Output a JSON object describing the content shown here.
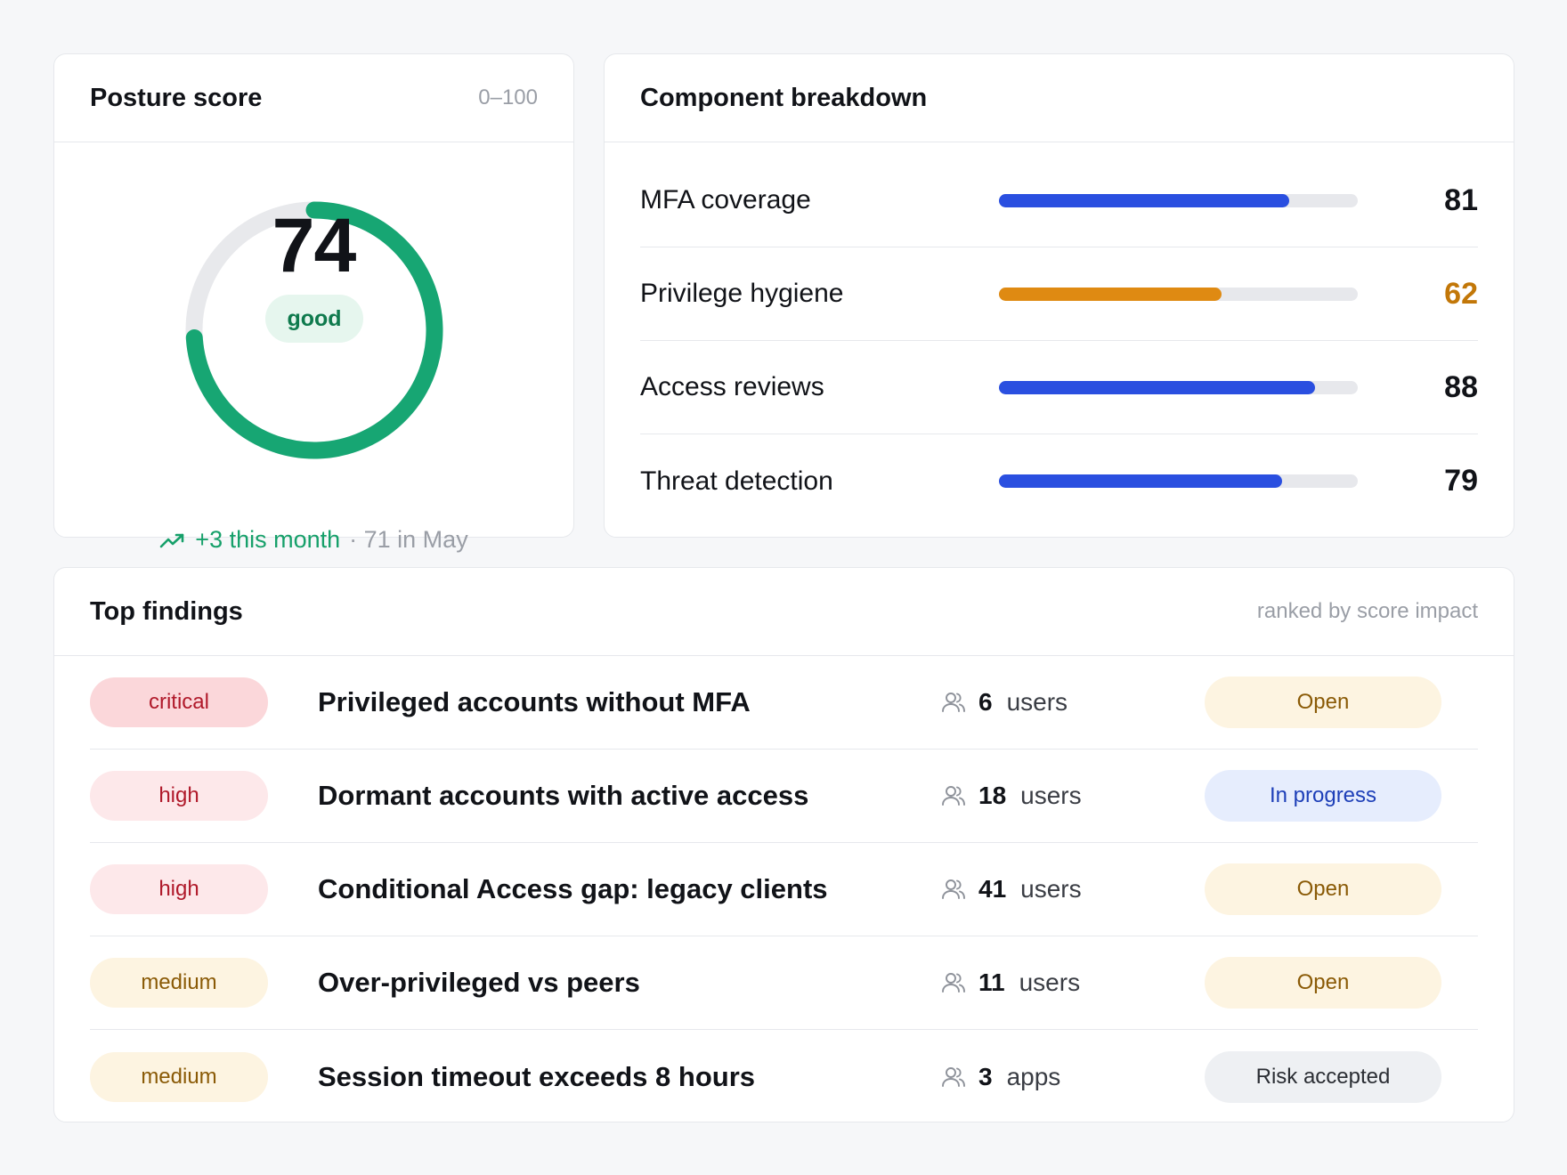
{
  "posture": {
    "title": "Posture score",
    "range_label": "0–100",
    "score": "74",
    "score_fraction": 0.74,
    "rating": "good",
    "trend_delta": "+3 this month",
    "trend_previous": "· 71 in May",
    "colors": {
      "arc": "#17a673",
      "track": "#e8e9ec"
    }
  },
  "components": {
    "title": "Component breakdown",
    "items": [
      {
        "label": "MFA coverage",
        "value": "81",
        "fraction": 0.81,
        "bar_color": "#2a4fe0",
        "value_color": "#111318"
      },
      {
        "label": "Privilege hygiene",
        "value": "62",
        "fraction": 0.62,
        "bar_color": "#df8a12",
        "value_color": "#c27708"
      },
      {
        "label": "Access reviews",
        "value": "88",
        "fraction": 0.88,
        "bar_color": "#2a4fe0",
        "value_color": "#111318"
      },
      {
        "label": "Threat detection",
        "value": "79",
        "fraction": 0.79,
        "bar_color": "#2a4fe0",
        "value_color": "#111318"
      }
    ]
  },
  "findings": {
    "title": "Top findings",
    "subtitle": "ranked by score impact",
    "items": [
      {
        "severity": "critical",
        "title": "Privileged accounts without MFA",
        "count": "6",
        "unit": "users",
        "status": "Open"
      },
      {
        "severity": "high",
        "title": "Dormant accounts with active access",
        "count": "18",
        "unit": "users",
        "status": "In progress"
      },
      {
        "severity": "high",
        "title": "Conditional Access gap: legacy clients",
        "count": "41",
        "unit": "users",
        "status": "Open"
      },
      {
        "severity": "medium",
        "title": "Over-privileged vs peers",
        "count": "11",
        "unit": "users",
        "status": "Open"
      },
      {
        "severity": "medium",
        "title": "Session timeout exceeds 8 hours",
        "count": "3",
        "unit": "apps",
        "status": "Risk accepted"
      }
    ],
    "icon": "users-icon"
  }
}
